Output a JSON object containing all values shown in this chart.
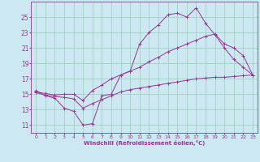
{
  "xlabel": "Windchill (Refroidissement éolien,°C)",
  "bg_color": "#cce8f0",
  "grid_color": "#99ccbb",
  "line_color": "#993399",
  "xlim": [
    -0.5,
    23.5
  ],
  "ylim": [
    10.0,
    27.0
  ],
  "xticks": [
    0,
    1,
    2,
    3,
    4,
    5,
    6,
    7,
    8,
    9,
    10,
    11,
    12,
    13,
    14,
    15,
    16,
    17,
    18,
    19,
    20,
    21,
    22,
    23
  ],
  "yticks": [
    11,
    13,
    15,
    17,
    19,
    21,
    23,
    25
  ],
  "line1_x": [
    0,
    1,
    2,
    3,
    4,
    5,
    6,
    7,
    8,
    9,
    10,
    11,
    12,
    13,
    14,
    15,
    16,
    17,
    18,
    19,
    20,
    21,
    22,
    23
  ],
  "line1_y": [
    15.5,
    14.8,
    14.5,
    13.2,
    12.8,
    11.0,
    11.2,
    14.8,
    15.0,
    17.5,
    18.0,
    21.5,
    23.0,
    24.0,
    25.3,
    25.5,
    25.0,
    26.2,
    24.2,
    22.7,
    21.0,
    19.5,
    18.5,
    17.5
  ],
  "line2_x": [
    0,
    1,
    2,
    3,
    4,
    5,
    6,
    7,
    8,
    9,
    10,
    11,
    12,
    13,
    14,
    15,
    16,
    17,
    18,
    19,
    20,
    21,
    22,
    23
  ],
  "line2_y": [
    15.3,
    15.1,
    14.9,
    15.0,
    15.0,
    14.2,
    15.5,
    16.2,
    17.0,
    17.5,
    18.0,
    18.5,
    19.2,
    19.8,
    20.5,
    21.0,
    21.5,
    22.0,
    22.5,
    22.8,
    21.5,
    21.0,
    20.0,
    17.5
  ],
  "line3_x": [
    0,
    1,
    2,
    3,
    4,
    5,
    6,
    7,
    8,
    9,
    10,
    11,
    12,
    13,
    14,
    15,
    16,
    17,
    18,
    19,
    20,
    21,
    22,
    23
  ],
  "line3_y": [
    15.2,
    14.9,
    14.7,
    14.6,
    14.4,
    13.2,
    13.8,
    14.3,
    14.8,
    15.3,
    15.6,
    15.8,
    16.0,
    16.2,
    16.4,
    16.6,
    16.8,
    17.0,
    17.1,
    17.2,
    17.2,
    17.3,
    17.4,
    17.5
  ],
  "marker": "+",
  "lw": 0.7,
  "ms": 2.5
}
